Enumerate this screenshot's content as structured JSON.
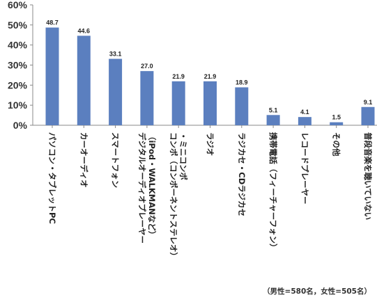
{
  "chart_data": {
    "type": "bar",
    "categories": [
      [
        "パソコン・タブレットPC"
      ],
      [
        "カーオーディオ"
      ],
      [
        "スマートフォン"
      ],
      [
        "デジタルオーディオプレーヤー",
        "（iPod・WALKMANなど）"
      ],
      [
        "コンポ（コンポーネントステレオ）",
        "・ミニコンポ"
      ],
      [
        "ラジオ"
      ],
      [
        "ラジカセ・CDラジカセ"
      ],
      [
        "携帯電話（フィーチャーフォン）"
      ],
      [
        "レコードプレーヤー"
      ],
      [
        "その他"
      ],
      [
        "普段音楽を聴いていない"
      ]
    ],
    "values": [
      48.7,
      44.6,
      33.1,
      27.0,
      21.9,
      21.9,
      18.9,
      5.1,
      4.1,
      1.5,
      9.1
    ],
    "value_labels": [
      "48.7",
      "44.6",
      "33.1",
      "27.0",
      "21.9",
      "21.9",
      "18.9",
      "5.1",
      "4.1",
      "1.5",
      "9.1"
    ],
    "y_ticks": [
      "0%",
      "10%",
      "20%",
      "30%",
      "40%",
      "50%",
      "60%"
    ],
    "ylim": [
      0,
      60
    ],
    "bar_color": "#5b7fbf",
    "grid": false
  },
  "footnote": "（男性=580名，女性=505名）"
}
